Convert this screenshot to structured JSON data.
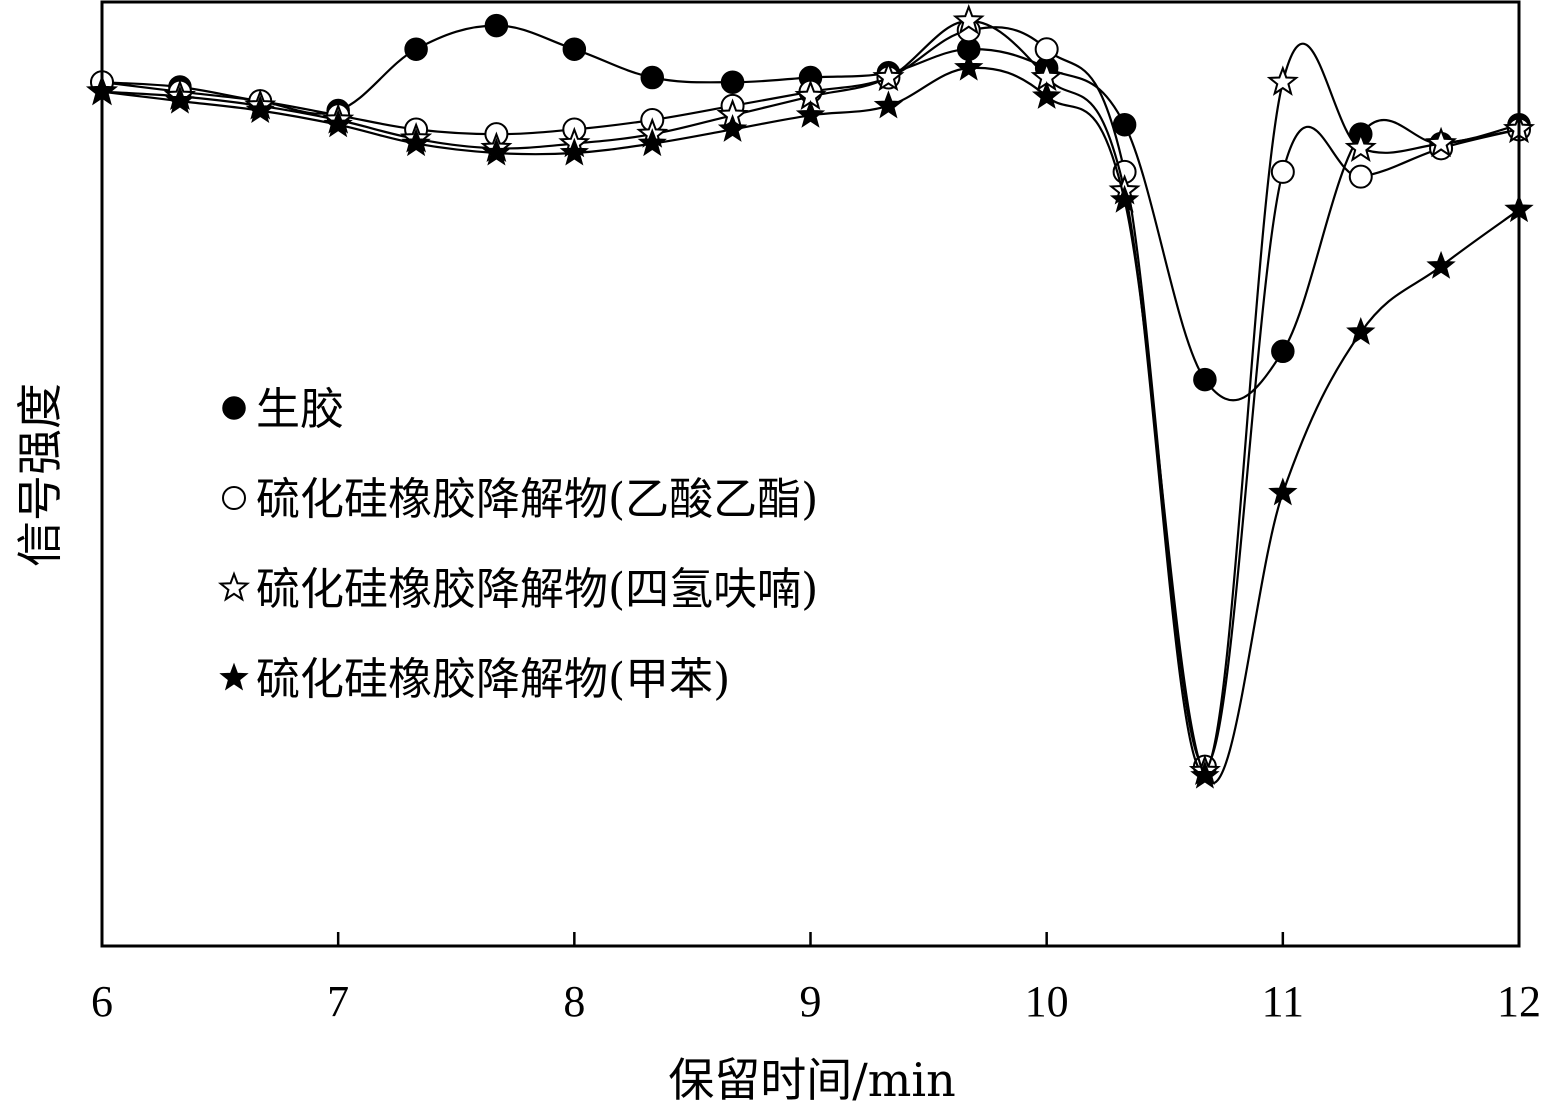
{
  "chart_data": {
    "type": "line",
    "xlabel": "保留时间/min",
    "ylabel": "信号强度",
    "xlim": [
      6,
      12
    ],
    "ylim": [
      0,
      1
    ],
    "x_ticks": [
      6,
      7,
      8,
      9,
      10,
      11,
      12
    ],
    "y_ticks": [],
    "grid": false,
    "legend_position": "center-left",
    "series": [
      {
        "name": "生胶",
        "marker": "filled-circle",
        "x": [
          6.0,
          6.33,
          6.67,
          7.0,
          7.33,
          7.67,
          8.0,
          8.33,
          8.67,
          9.0,
          9.33,
          9.67,
          10.0,
          10.33,
          10.67,
          11.0,
          11.33,
          11.67,
          12.0
        ],
        "y": [
          0.915,
          0.91,
          0.895,
          0.885,
          0.95,
          0.975,
          0.95,
          0.92,
          0.915,
          0.92,
          0.925,
          0.95,
          0.93,
          0.87,
          0.6,
          0.63,
          0.86,
          0.85,
          0.87
        ]
      },
      {
        "name": "硫化硅橡胶降解物(乙酸乙酯)",
        "marker": "open-circle",
        "x": [
          6.0,
          6.33,
          6.67,
          7.0,
          7.33,
          7.67,
          8.0,
          8.33,
          8.67,
          9.0,
          9.33,
          9.67,
          10.0,
          10.33,
          10.67,
          11.0,
          11.33,
          11.67,
          12.0
        ],
        "y": [
          0.915,
          0.905,
          0.895,
          0.88,
          0.865,
          0.86,
          0.865,
          0.875,
          0.89,
          0.905,
          0.92,
          0.97,
          0.95,
          0.82,
          0.19,
          0.82,
          0.815,
          0.845,
          0.865
        ]
      },
      {
        "name": "硫化硅橡胶降解物(四氢呋喃)",
        "marker": "open-star",
        "x": [
          6.0,
          6.33,
          6.67,
          7.0,
          7.33,
          7.67,
          8.0,
          8.33,
          8.67,
          9.0,
          9.33,
          9.67,
          10.0,
          10.33,
          10.67,
          11.0,
          11.33,
          11.67,
          12.0
        ],
        "y": [
          0.905,
          0.9,
          0.89,
          0.875,
          0.855,
          0.845,
          0.85,
          0.86,
          0.88,
          0.9,
          0.92,
          0.98,
          0.92,
          0.8,
          0.185,
          0.915,
          0.845,
          0.85,
          0.865
        ]
      },
      {
        "name": "硫化硅橡胶降解物(甲苯)",
        "marker": "filled-star",
        "x": [
          6.0,
          6.33,
          6.67,
          7.0,
          7.33,
          7.67,
          8.0,
          8.33,
          8.67,
          9.0,
          9.33,
          9.67,
          10.0,
          10.33,
          10.67,
          11.0,
          11.33,
          11.67,
          12.0
        ],
        "y": [
          0.905,
          0.895,
          0.885,
          0.87,
          0.85,
          0.84,
          0.84,
          0.85,
          0.865,
          0.88,
          0.89,
          0.93,
          0.9,
          0.79,
          0.18,
          0.48,
          0.65,
          0.72,
          0.78
        ]
      }
    ]
  }
}
